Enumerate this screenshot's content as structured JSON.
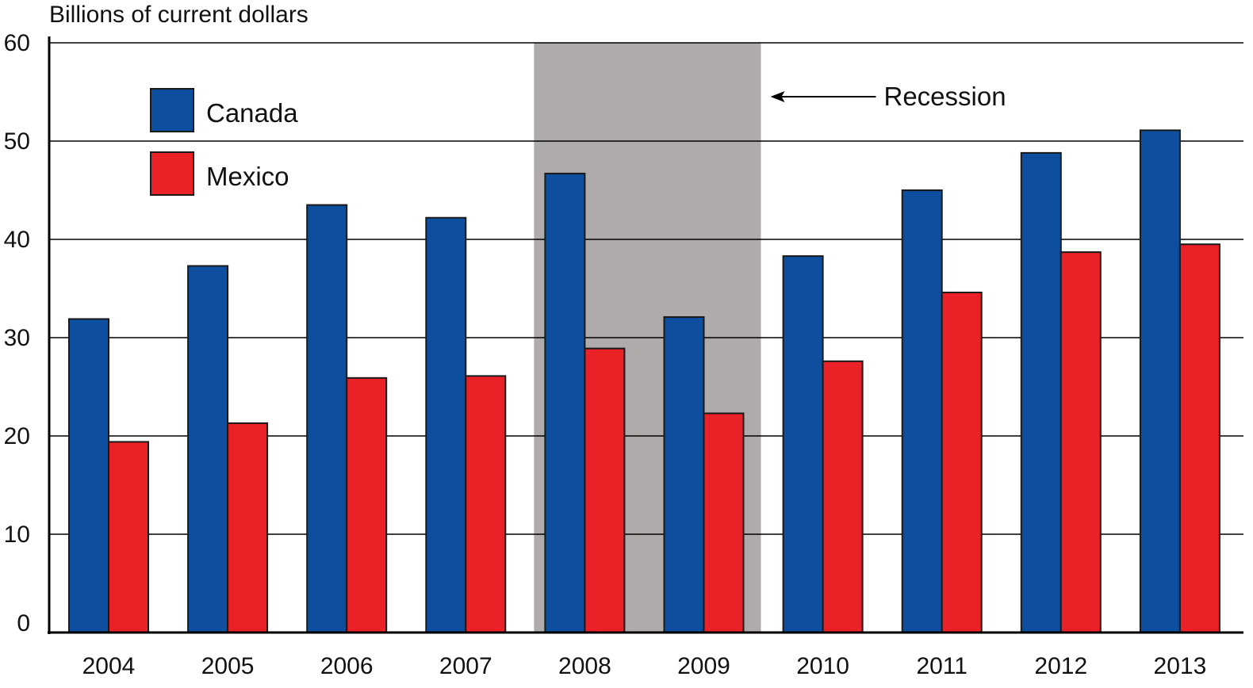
{
  "chart_data": {
    "type": "bar",
    "ylabel": "Billions of current dollars",
    "categories": [
      "2004",
      "2005",
      "2006",
      "2007",
      "2008",
      "2009",
      "2010",
      "2011",
      "2012",
      "2013"
    ],
    "series": [
      {
        "name": "Canada",
        "color": "#0d4f9e",
        "values": [
          31.9,
          37.3,
          43.5,
          42.2,
          46.7,
          32.1,
          38.3,
          45.0,
          48.8,
          51.1
        ]
      },
      {
        "name": "Mexico",
        "color": "#ea2228",
        "values": [
          19.4,
          21.3,
          25.9,
          26.1,
          28.9,
          22.3,
          27.6,
          34.6,
          38.7,
          39.5
        ]
      }
    ],
    "ylim": [
      0,
      60
    ],
    "yticks": [
      0,
      10,
      20,
      30,
      40,
      50,
      60
    ],
    "grid": true,
    "legend_position": "top-left",
    "recession": {
      "label": "Recession",
      "categories": [
        "2008",
        "2009"
      ],
      "color": "#b0abab"
    }
  }
}
